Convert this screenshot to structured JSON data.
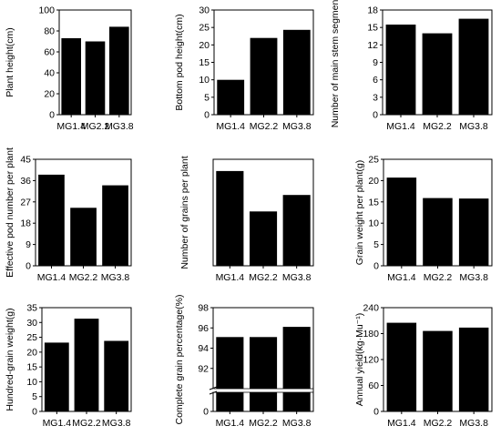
{
  "chart_data": [
    {
      "type": "bar",
      "categories": [
        "MG1.4",
        "MG2.2",
        "MG3.8"
      ],
      "values": [
        73,
        70,
        84
      ],
      "ylabel": "Plant height(cm)",
      "ylim": [
        0,
        100
      ],
      "yticks": [
        0,
        20,
        40,
        60,
        80,
        100
      ]
    },
    {
      "type": "bar",
      "categories": [
        "MG1.4",
        "MG2.2",
        "MG3.8"
      ],
      "values": [
        10,
        22,
        24.3
      ],
      "ylabel": "Bottom pod height(cm)",
      "ylim": [
        0,
        30
      ],
      "yticks": [
        0,
        5,
        10,
        15,
        20,
        25,
        30
      ]
    },
    {
      "type": "bar",
      "categories": [
        "MG1.4",
        "MG2.2",
        "MG3.8"
      ],
      "values": [
        15.5,
        14,
        16.5
      ],
      "ylabel": "Number of main stem segment",
      "ylim": [
        0,
        18
      ],
      "yticks": [
        0,
        3,
        6,
        9,
        12,
        15,
        18
      ]
    },
    {
      "type": "bar",
      "categories": [
        "MG1.4",
        "MG2.2",
        "MG3.8"
      ],
      "values": [
        38.5,
        24.5,
        34
      ],
      "ylabel": "Effective pod number per plant",
      "ylim": [
        0,
        45
      ],
      "yticks": [
        0,
        9,
        18,
        27,
        36,
        45
      ]
    },
    {
      "type": "bar",
      "categories": [
        "MG1.4",
        "MG2.2",
        "MG3.8"
      ],
      "values": [
        89,
        51,
        66.5
      ],
      "ylabel": "Number of grains per plant",
      "ylim": [
        0,
        100
      ],
      "yticks": []
    },
    {
      "type": "bar",
      "categories": [
        "MG1.4",
        "MG2.2",
        "MG3.8"
      ],
      "values": [
        20.7,
        15.9,
        15.8
      ],
      "ylabel": "Grain weight per plant(g)",
      "ylim": [
        0,
        25
      ],
      "yticks": [
        0,
        5,
        10,
        15,
        20,
        25
      ]
    },
    {
      "type": "bar",
      "categories": [
        "MG1.4",
        "MG2.2",
        "MG3.8"
      ],
      "values": [
        23.2,
        31.3,
        23.8
      ],
      "ylabel": "Hundred-grain weight(g)",
      "ylim": [
        0,
        35
      ],
      "yticks": [
        0,
        5,
        10,
        15,
        20,
        25,
        30,
        35
      ]
    },
    {
      "type": "bar",
      "categories": [
        "MG1.4",
        "MG2.2",
        "MG3.8"
      ],
      "values": [
        95.1,
        95.1,
        96.1
      ],
      "ylabel": "Complete grain percentage(%)",
      "axis_break": true,
      "ylim_lower": [
        0,
        10
      ],
      "ylim_upper": [
        90,
        98
      ],
      "yticks_lower": [
        0
      ],
      "yticks_upper": [
        92,
        94,
        96,
        98
      ]
    },
    {
      "type": "bar",
      "categories": [
        "MG1.4",
        "MG2.2",
        "MG3.8"
      ],
      "values": [
        205,
        186,
        194
      ],
      "ylabel": "Annual yield(kg·Mu⁻¹)",
      "ylim": [
        0,
        240
      ],
      "yticks": [
        0,
        60,
        120,
        180,
        240
      ]
    }
  ]
}
